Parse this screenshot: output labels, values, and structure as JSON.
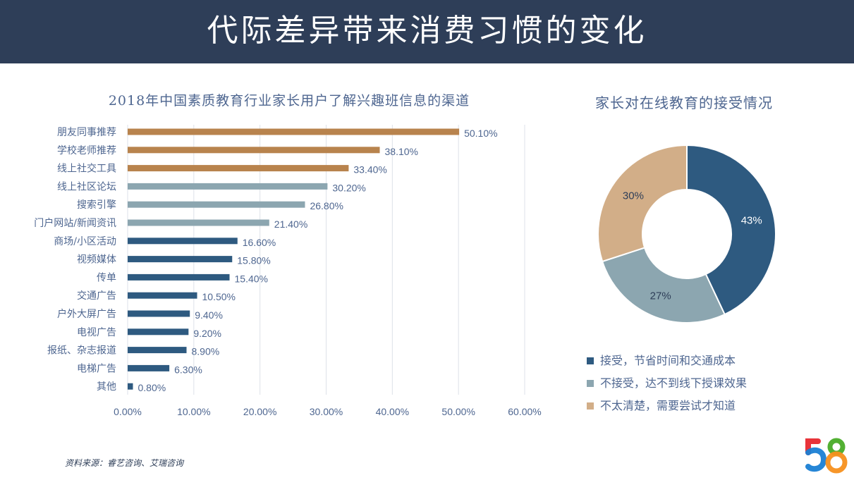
{
  "header": {
    "title": "代际差异带来消费习惯的变化"
  },
  "chart_data": [
    {
      "type": "bar",
      "orientation": "horizontal",
      "title": "2018年中国素质教育行业家长用户了解兴趣班信息的渠道",
      "categories": [
        "朋友同事推荐",
        "学校老师推荐",
        "线上社交工具",
        "线上社区论坛",
        "搜索引擎",
        "门户网站/新闻资讯",
        "商场/小区活动",
        "视频媒体",
        "传单",
        "交通广告",
        "户外大屏广告",
        "电视广告",
        "报纸、杂志报道",
        "电梯广告",
        "其他"
      ],
      "values": [
        50.1,
        38.1,
        33.4,
        30.2,
        26.8,
        21.4,
        16.6,
        15.8,
        15.4,
        10.5,
        9.4,
        9.2,
        8.9,
        6.3,
        0.8
      ],
      "value_labels": [
        "50.10%",
        "38.10%",
        "33.40%",
        "30.20%",
        "26.80%",
        "21.40%",
        "16.60%",
        "15.80%",
        "15.40%",
        "10.50%",
        "9.40%",
        "9.20%",
        "8.90%",
        "6.30%",
        "0.80%"
      ],
      "bar_colors": [
        "#b8834d",
        "#b8834d",
        "#b8834d",
        "#8ca6b0",
        "#8ca6b0",
        "#8ca6b0",
        "#2e5a80",
        "#2e5a80",
        "#2e5a80",
        "#2e5a80",
        "#2e5a80",
        "#2e5a80",
        "#2e5a80",
        "#2e5a80",
        "#2e5a80"
      ],
      "xlim": [
        0,
        60
      ],
      "x_ticks": [
        "0.00%",
        "10.00%",
        "20.00%",
        "30.00%",
        "40.00%",
        "50.00%",
        "60.00%"
      ],
      "grid": true
    },
    {
      "type": "pie",
      "donut": true,
      "title": "家长对在线教育的接受情况",
      "labels": [
        "接受，节省时间和交通成本",
        "不接受，达不到线下授课效果",
        "不太清楚，需要尝试才知道"
      ],
      "values": [
        43,
        27,
        30
      ],
      "value_labels": [
        "43%",
        "27%",
        "30%"
      ],
      "colors": [
        "#2e5a80",
        "#8ca6b0",
        "#d2ae88"
      ],
      "legend": "bottom"
    }
  ],
  "footer": {
    "source": "资料来源：睿艺咨询、艾瑞咨询",
    "logo": "58"
  }
}
